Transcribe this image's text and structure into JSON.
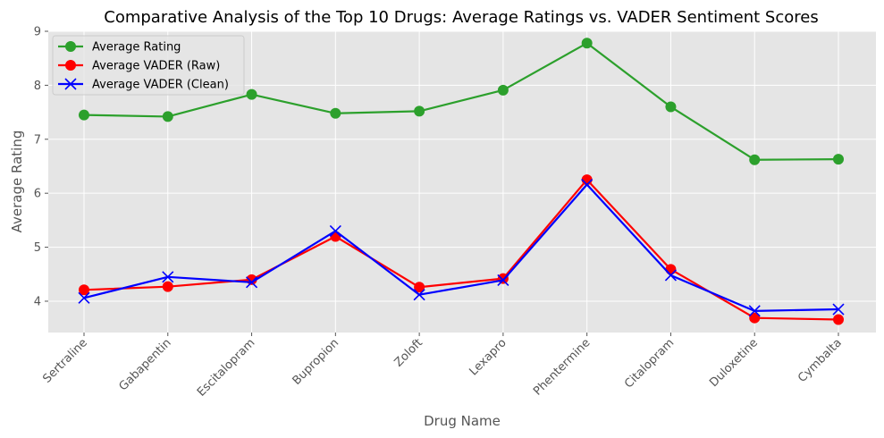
{
  "chart_data": {
    "type": "line",
    "title": "Comparative Analysis of the Top 10 Drugs: Average Ratings vs. VADER Sentiment Scores",
    "xlabel": "Drug Name",
    "ylabel": "Average Rating",
    "ylim": [
      3.42,
      9.0
    ],
    "yticks": [
      4,
      5,
      6,
      7,
      8,
      9
    ],
    "grid": true,
    "legend_position": "top-left",
    "categories": [
      "Sertraline",
      "Gabapentin",
      "Escitalopram",
      "Bupropion",
      "Zoloft",
      "Lexapro",
      "Phentermine",
      "Citalopram",
      "Duloxetine",
      "Cymbalta"
    ],
    "series": [
      {
        "name": "Average Rating",
        "color": "#2ca02c",
        "marker": "circle",
        "values": [
          7.45,
          7.42,
          7.83,
          7.48,
          7.52,
          7.91,
          8.78,
          7.6,
          6.62,
          6.63
        ]
      },
      {
        "name": "Average VADER (Raw)",
        "color": "#ff0000",
        "marker": "circle",
        "values": [
          4.21,
          4.27,
          4.4,
          5.2,
          4.26,
          4.42,
          6.25,
          4.59,
          3.69,
          3.66
        ]
      },
      {
        "name": "Average VADER (Clean)",
        "color": "#0000ff",
        "marker": "x",
        "values": [
          4.06,
          4.45,
          4.35,
          5.3,
          4.12,
          4.39,
          6.16,
          4.48,
          3.82,
          3.85
        ]
      }
    ]
  }
}
